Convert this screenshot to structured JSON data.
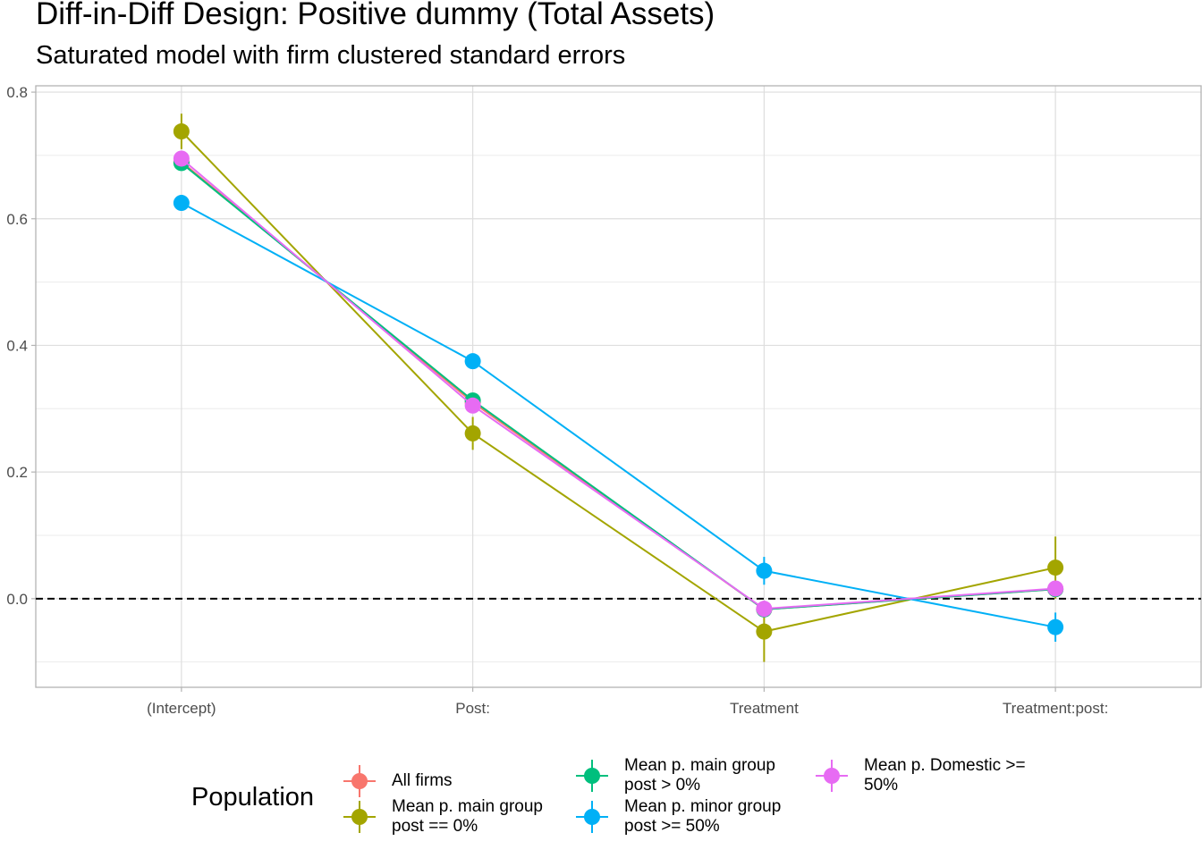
{
  "chart_data": {
    "type": "line",
    "title": "Diff-in-Diff Design: Positive dummy (Total Assets)",
    "subtitle": "Saturated model with firm clustered standard errors",
    "xlabel": "",
    "ylabel": "",
    "categories": [
      "(Intercept)",
      "Post:",
      "Treatment",
      "Treatment:post:"
    ],
    "ylim": [
      -0.14,
      0.81
    ],
    "yticks": [
      0.0,
      0.2,
      0.4,
      0.6,
      0.8
    ],
    "ytick_labels": [
      "0.0",
      "0.2",
      "0.4",
      "0.6",
      "0.8"
    ],
    "grid": true,
    "reference_line": {
      "y": 0,
      "style": "dashed"
    },
    "legend": {
      "title": "Population",
      "position": "bottom"
    },
    "series": [
      {
        "name": "All firms",
        "color": "#F8766D",
        "values": [
          0.69,
          0.31,
          -0.017,
          0.015
        ],
        "lower": [
          0.68,
          0.298,
          -0.03,
          0.005
        ],
        "upper": [
          0.7,
          0.322,
          -0.004,
          0.025
        ]
      },
      {
        "name": "Mean p. main group\npost == 0%",
        "color": "#A3A500",
        "values": [
          0.738,
          0.261,
          -0.052,
          0.049
        ],
        "lower": [
          0.71,
          0.235,
          -0.1,
          0.0
        ],
        "upper": [
          0.766,
          0.287,
          -0.004,
          0.098
        ]
      },
      {
        "name": "Mean p. main group\npost > 0%",
        "color": "#00BF7D",
        "values": [
          0.688,
          0.313,
          -0.017,
          0.015
        ],
        "lower": [
          0.678,
          0.301,
          -0.03,
          0.005
        ],
        "upper": [
          0.698,
          0.325,
          -0.004,
          0.025
        ]
      },
      {
        "name": "Mean p. minor group\npost >= 50%",
        "color": "#00B0F6",
        "values": [
          0.625,
          0.375,
          0.044,
          -0.045
        ],
        "lower": [
          0.615,
          0.363,
          0.022,
          -0.068
        ],
        "upper": [
          0.635,
          0.387,
          0.066,
          -0.022
        ]
      },
      {
        "name": "Mean p. Domestic >=\n50%",
        "color": "#E76BF3",
        "values": [
          0.695,
          0.305,
          -0.016,
          0.016
        ],
        "lower": [
          0.685,
          0.293,
          -0.029,
          0.006
        ],
        "upper": [
          0.705,
          0.317,
          -0.003,
          0.026
        ]
      }
    ]
  }
}
